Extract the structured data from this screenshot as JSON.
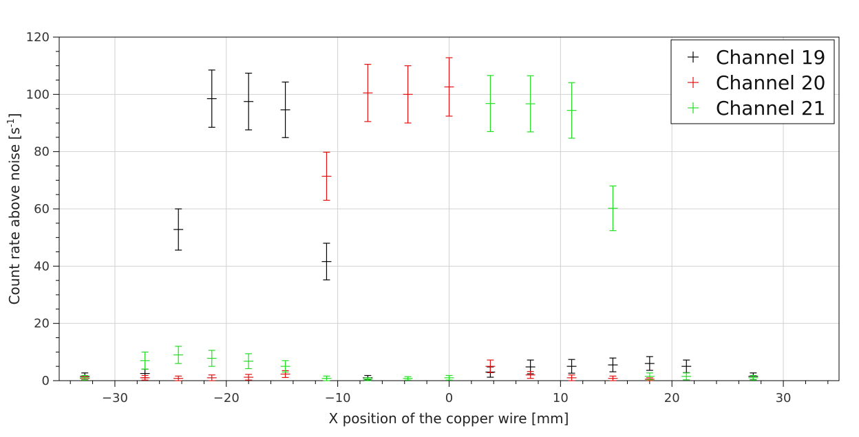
{
  "chart_data": {
    "type": "scatter",
    "xlabel": "X position of the copper wire [mm]",
    "ylabel_main": "Count rate above noise [s",
    "ylabel_sup": "-1",
    "ylabel_end": "]",
    "xlim": [
      -35,
      35
    ],
    "ylim": [
      0,
      120
    ],
    "xticks": [
      -30,
      -20,
      -10,
      0,
      10,
      20,
      30
    ],
    "xtick_labels": [
      "−30",
      "−20",
      "−10",
      "0",
      "10",
      "20",
      "30"
    ],
    "yticks": [
      0,
      20,
      40,
      60,
      80,
      100,
      120
    ],
    "ytick_labels": [
      "0",
      "20",
      "40",
      "60",
      "80",
      "100",
      "120"
    ],
    "grid": true,
    "legend_position": "top-right",
    "series": [
      {
        "name": "Channel 19",
        "color": "#000000",
        "points": [
          {
            "x": -32.7,
            "y": 1.5,
            "err": 1.2
          },
          {
            "x": -27.3,
            "y": 2.5,
            "err": 1.5
          },
          {
            "x": -24.3,
            "y": 52.8,
            "err": 7.2
          },
          {
            "x": -21.3,
            "y": 98.5,
            "err": 10.0
          },
          {
            "x": -18.0,
            "y": 97.5,
            "err": 9.9
          },
          {
            "x": -14.7,
            "y": 94.6,
            "err": 9.7
          },
          {
            "x": -11.0,
            "y": 41.6,
            "err": 6.4
          },
          {
            "x": -7.3,
            "y": 1.0,
            "err": 0.8
          },
          {
            "x": 3.7,
            "y": 3.0,
            "err": 1.8
          },
          {
            "x": 7.3,
            "y": 4.8,
            "err": 2.4
          },
          {
            "x": 11.0,
            "y": 5.0,
            "err": 2.4
          },
          {
            "x": 14.7,
            "y": 5.5,
            "err": 2.4
          },
          {
            "x": 18.0,
            "y": 6.0,
            "err": 2.4
          },
          {
            "x": 21.3,
            "y": 5.0,
            "err": 2.2
          },
          {
            "x": 27.3,
            "y": 1.5,
            "err": 1.2
          }
        ]
      },
      {
        "name": "Channel 20",
        "color": "#e01010",
        "points": [
          {
            "x": -32.7,
            "y": 0.8,
            "err": 0.6
          },
          {
            "x": -27.3,
            "y": 1.0,
            "err": 0.8
          },
          {
            "x": -24.3,
            "y": 0.8,
            "err": 0.8
          },
          {
            "x": -21.3,
            "y": 1.0,
            "err": 1.0
          },
          {
            "x": -18.0,
            "y": 1.2,
            "err": 1.0
          },
          {
            "x": -14.7,
            "y": 2.3,
            "err": 1.2
          },
          {
            "x": -11.0,
            "y": 71.4,
            "err": 8.4
          },
          {
            "x": -7.3,
            "y": 100.5,
            "err": 10.0
          },
          {
            "x": -3.7,
            "y": 100.0,
            "err": 10.0
          },
          {
            "x": 0.0,
            "y": 102.6,
            "err": 10.2
          },
          {
            "x": 3.7,
            "y": 5.0,
            "err": 2.2
          },
          {
            "x": 7.3,
            "y": 2.0,
            "err": 1.2
          },
          {
            "x": 11.0,
            "y": 1.0,
            "err": 1.0
          },
          {
            "x": 14.7,
            "y": 0.8,
            "err": 0.8
          },
          {
            "x": 18.0,
            "y": 0.5,
            "err": 0.5
          }
        ]
      },
      {
        "name": "Channel 21",
        "color": "#22dd22",
        "points": [
          {
            "x": -32.7,
            "y": 1.0,
            "err": 0.8
          },
          {
            "x": -27.3,
            "y": 7.0,
            "err": 3.0
          },
          {
            "x": -24.3,
            "y": 9.0,
            "err": 3.0
          },
          {
            "x": -21.3,
            "y": 7.8,
            "err": 2.8
          },
          {
            "x": -18.0,
            "y": 6.8,
            "err": 2.6
          },
          {
            "x": -14.7,
            "y": 5.0,
            "err": 2.0
          },
          {
            "x": -11.0,
            "y": 0.8,
            "err": 0.8
          },
          {
            "x": -7.3,
            "y": 0.5,
            "err": 0.5
          },
          {
            "x": -3.7,
            "y": 0.8,
            "err": 0.6
          },
          {
            "x": 0.0,
            "y": 1.0,
            "err": 0.8
          },
          {
            "x": 3.7,
            "y": 96.8,
            "err": 9.8
          },
          {
            "x": 7.3,
            "y": 96.7,
            "err": 9.8
          },
          {
            "x": 11.0,
            "y": 94.4,
            "err": 9.7
          },
          {
            "x": 14.7,
            "y": 60.2,
            "err": 7.8
          },
          {
            "x": 18.0,
            "y": 1.5,
            "err": 1.2
          },
          {
            "x": 21.3,
            "y": 1.5,
            "err": 1.2
          },
          {
            "x": 27.3,
            "y": 1.0,
            "err": 0.8
          }
        ]
      }
    ]
  }
}
